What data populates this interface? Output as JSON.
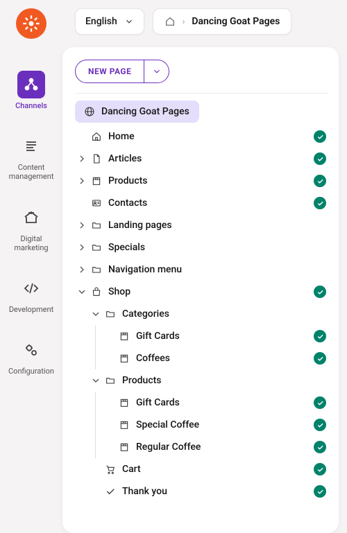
{
  "topbar": {
    "language": "English",
    "breadcrumb_title": "Dancing Goat Pages"
  },
  "sidebar": {
    "items": [
      {
        "label": "Channels",
        "active": true
      },
      {
        "label": "Content management",
        "active": false
      },
      {
        "label": "Digital marketing",
        "active": false
      },
      {
        "label": "Development",
        "active": false
      },
      {
        "label": "Configuration",
        "active": false
      }
    ]
  },
  "panel": {
    "new_page_label": "NEW PAGE",
    "root_label": "Dancing Goat Pages",
    "tree": [
      {
        "label": "Home",
        "icon": "home",
        "depth": 1,
        "status": true
      },
      {
        "label": "Articles",
        "icon": "file",
        "depth": 1,
        "status": true,
        "expandable": true,
        "expanded": false
      },
      {
        "label": "Products",
        "icon": "box",
        "depth": 1,
        "status": true,
        "expandable": true,
        "expanded": false
      },
      {
        "label": "Contacts",
        "icon": "id",
        "depth": 1,
        "status": true
      },
      {
        "label": "Landing pages",
        "icon": "folder",
        "depth": 1,
        "status": false,
        "expandable": true,
        "expanded": false
      },
      {
        "label": "Specials",
        "icon": "folder",
        "depth": 1,
        "status": false,
        "expandable": true,
        "expanded": false
      },
      {
        "label": "Navigation menu",
        "icon": "folder",
        "depth": 1,
        "status": false,
        "expandable": true,
        "expanded": false
      },
      {
        "label": "Shop",
        "icon": "shop",
        "depth": 1,
        "status": true,
        "expandable": true,
        "expanded": true
      },
      {
        "label": "Categories",
        "icon": "folder",
        "depth": 2,
        "status": false,
        "expandable": true,
        "expanded": true,
        "guides": [
          false
        ]
      },
      {
        "label": "Gift Cards",
        "icon": "box",
        "depth": 3,
        "status": true,
        "guides": [
          false,
          true
        ]
      },
      {
        "label": "Coffees",
        "icon": "box",
        "depth": 3,
        "status": true,
        "guides": [
          false,
          true
        ]
      },
      {
        "label": "Products",
        "icon": "folder",
        "depth": 2,
        "status": false,
        "expandable": true,
        "expanded": true,
        "guides": [
          false
        ]
      },
      {
        "label": "Gift Cards",
        "icon": "box",
        "depth": 3,
        "status": true,
        "guides": [
          false,
          true
        ]
      },
      {
        "label": "Special Coffee",
        "icon": "box",
        "depth": 3,
        "status": true,
        "guides": [
          false,
          true
        ]
      },
      {
        "label": "Regular Coffee",
        "icon": "box",
        "depth": 3,
        "status": true,
        "guides": [
          false,
          true
        ]
      },
      {
        "label": "Cart",
        "icon": "cart",
        "depth": 2,
        "status": true,
        "guides": [
          false
        ]
      },
      {
        "label": "Thank you",
        "icon": "check",
        "depth": 2,
        "status": true,
        "guides": [
          false
        ]
      }
    ]
  },
  "colors": {
    "accent": "#6b2fbd",
    "brand": "#f05a22",
    "status_ok": "#00826a",
    "root_bg": "#e4defa"
  }
}
